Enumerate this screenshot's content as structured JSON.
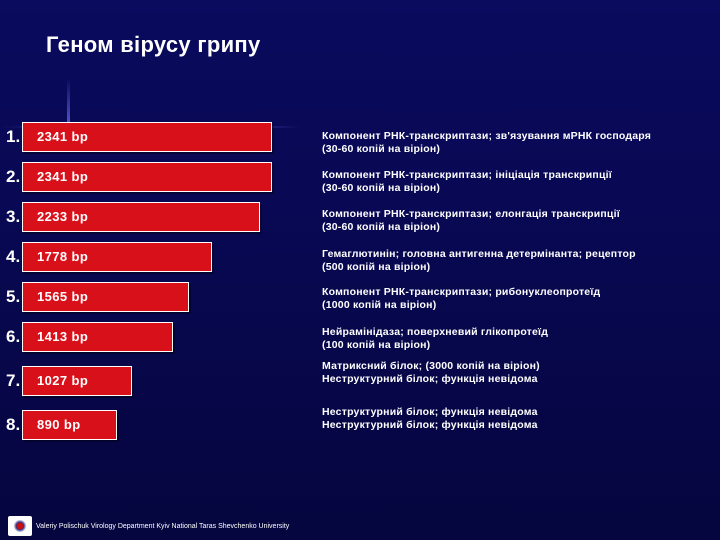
{
  "slide": {
    "title": "Геном вірусу грипу",
    "footer": "Valeriy Polischuk   Virology Department   Kyiv National Taras Shevchenko University"
  },
  "chart_data": {
    "type": "bar",
    "orientation": "horizontal",
    "title": "Геном вірусу грипу",
    "unit": "bp",
    "categories": [
      "1.",
      "2.",
      "3.",
      "4.",
      "5.",
      "6.",
      "7.",
      "8."
    ],
    "values": [
      2341,
      2341,
      2233,
      1778,
      1565,
      1413,
      1027,
      890
    ],
    "labels": [
      "2341 bp",
      "2341 bp",
      "2233 bp",
      "1778 bp",
      "1565 bp",
      "1413 bp",
      "1027 bp",
      "890 bp"
    ],
    "descriptions": [
      [
        "Компонент РНК-транскриптази; зв'язування мРНК господаря",
        "(30-60 копій на віріон)"
      ],
      [
        "Компонент РНК-транскриптази; ініціація транскрипції",
        "(30-60 копій на віріон)"
      ],
      [
        "Компонент РНК-транскриптази; елонгація транскрипції",
        "(30-60 копій на віріон)"
      ],
      [
        "Гемаглютинін; головна антигенна детермінанта; рецептор",
        "(500 копій на віріон)"
      ],
      [
        "Компонент РНК-транскриптази; рибонуклеопротеїд",
        "(1000 копій на віріон)"
      ],
      [
        "Нейрамінідаза; поверхневий глікопротеїд",
        "(100 копій на віріон)"
      ],
      [
        "Матриксний білок; (3000 копій на віріон)",
        "Неструктурний білок; функція невідома"
      ],
      [
        "Неструктурний білок; функція невідома",
        "Неструктурний білок; функція невідома"
      ]
    ],
    "bar_color": "#d8101a",
    "xlim": [
      0,
      2341
    ]
  }
}
